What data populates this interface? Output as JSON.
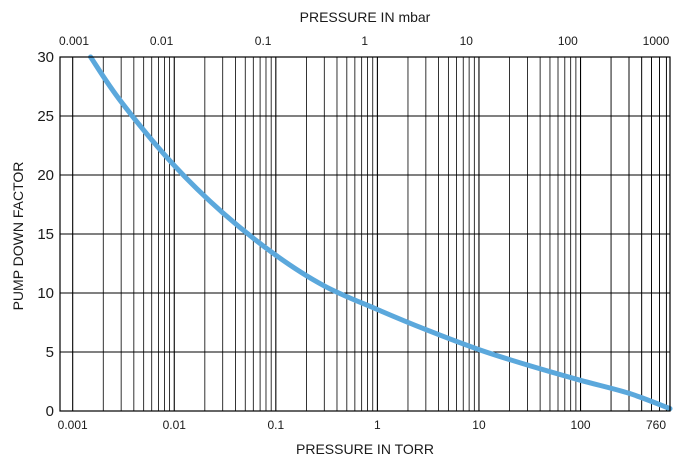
{
  "chart_data": {
    "type": "line",
    "title": "",
    "xlabel_bottom": "PRESSURE IN TORR",
    "xlabel_top": "PRESSURE IN mbar",
    "ylabel": "PUMP DOWN FACTOR",
    "x_scale": "log",
    "x_bottom_ticks": [
      "0.001",
      "0.01",
      "0.1",
      "1",
      "10",
      "100",
      "760"
    ],
    "x_top_ticks": [
      "0.001",
      "0.01",
      "0.1",
      "1",
      "10",
      "100",
      "1000"
    ],
    "y_ticks": [
      "0",
      "5",
      "10",
      "15",
      "20",
      "25",
      "30"
    ],
    "xlim_torr": [
      0.00075,
      760
    ],
    "ylim": [
      0,
      30
    ],
    "grid": true,
    "colors": {
      "curve": "#5ba8dc",
      "grid": "#000000"
    },
    "series": [
      {
        "x": [
          0.0015,
          0.003,
          0.01,
          0.03,
          0.1,
          0.3,
          1,
          3,
          10,
          30,
          100,
          300,
          760
        ],
        "y": [
          30,
          26.2,
          20.8,
          16.8,
          13.2,
          10.6,
          8.6,
          6.9,
          5.2,
          3.9,
          2.6,
          1.5,
          0.2
        ]
      }
    ]
  }
}
